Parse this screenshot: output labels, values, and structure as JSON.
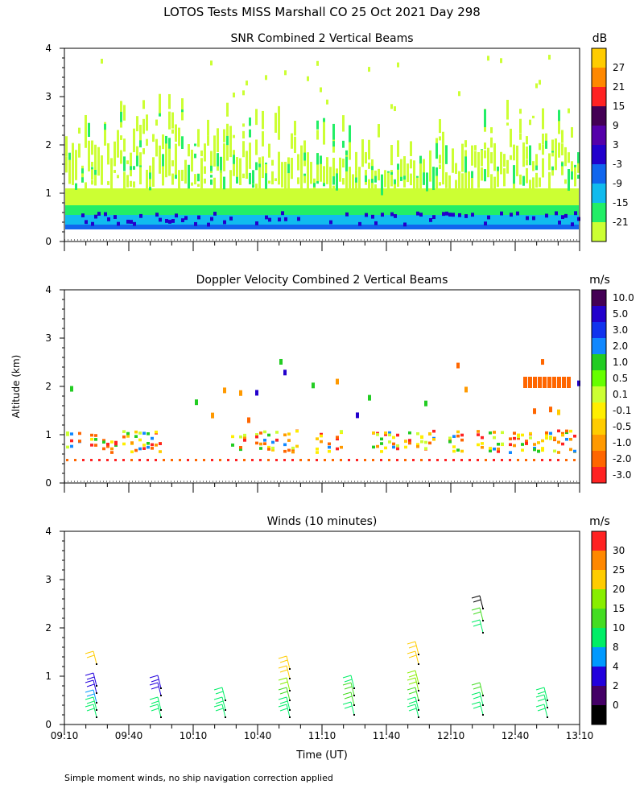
{
  "page_title": "LOTOS Tests MISS Marshall CO  25 Oct 2021 Day 298",
  "shared_ylabel": "Altitude (km)",
  "shared_xlabel": "Time (UT)",
  "footer_note": "Simple moment winds, no ship navigation correction applied",
  "colors": {
    "snr": [
      "#ccff33",
      "#22ee66",
      "#11bbee",
      "#1166ee",
      "#2200cc",
      "#5500aa",
      "#440055",
      "#ff2222",
      "#ff8800",
      "#ffcc00"
    ],
    "vel": [
      "#ff2222",
      "#ff6600",
      "#ff9900",
      "#ffcc00",
      "#ffee00",
      "#ccff33",
      "#66ff00",
      "#22cc22",
      "#1188ff",
      "#1133ee",
      "#2200cc",
      "#440055"
    ],
    "wind": [
      "#000000",
      "#440066",
      "#2200dd",
      "#0099ff",
      "#00ee66",
      "#44dd22",
      "#88ee00",
      "#ffcc00",
      "#ff8800",
      "#ff2222"
    ]
  },
  "chart_data": [
    {
      "type": "heatmap",
      "title": "SNR Combined 2 Vertical Beams",
      "units": "dB",
      "ylim": [
        0,
        4
      ],
      "yticks": [
        "0",
        "1",
        "2",
        "3",
        "4"
      ],
      "colorbar_labels": [
        "-21",
        "-15",
        "-9",
        "-3",
        "3",
        "9",
        "15",
        "21",
        "27"
      ],
      "x_ticks_shown": false,
      "profile_bands": [
        {
          "from_km": 0.25,
          "to_km": 0.35,
          "color_index": 3
        },
        {
          "from_km": 0.35,
          "to_km": 0.55,
          "color_index": 2
        },
        {
          "from_km": 0.55,
          "to_km": 0.75,
          "color_index": 1
        },
        {
          "from_km": 0.75,
          "to_km": 1.1,
          "color_index": 0
        }
      ]
    },
    {
      "type": "heatmap",
      "title": "Doppler Velocity Combined 2 Vertical Beams",
      "units": "m/s",
      "ylim": [
        0,
        4
      ],
      "yticks": [
        "0",
        "1",
        "2",
        "3",
        "4"
      ],
      "colorbar_labels": [
        "-3.0",
        "-2.0",
        "-1.0",
        "-0.5",
        "-0.1",
        "0.1",
        "0.5",
        "1.0",
        "2.0",
        "3.0",
        "5.0",
        "10.0"
      ],
      "x_ticks_shown": false
    },
    {
      "type": "scatter",
      "title": "Winds (10 minutes)",
      "units": "m/s",
      "ylim": [
        0,
        4
      ],
      "yticks": [
        "0",
        "1",
        "2",
        "3",
        "4"
      ],
      "x_ticks": [
        "09:10",
        "09:40",
        "10:10",
        "10:40",
        "11:10",
        "11:40",
        "12:10",
        "12:40",
        "13:10"
      ],
      "x_range_hours": [
        9.1667,
        13.1667
      ],
      "colorbar_labels": [
        "0",
        "2",
        "4",
        "8",
        "10",
        "15",
        "20",
        "25",
        "30"
      ],
      "profiles": [
        {
          "time": "09:25",
          "barbs": [
            {
              "alt_km": 0.15,
              "color_index": 4
            },
            {
              "alt_km": 0.3,
              "color_index": 4
            },
            {
              "alt_km": 0.45,
              "color_index": 3
            },
            {
              "alt_km": 0.65,
              "color_index": 2
            },
            {
              "alt_km": 0.8,
              "color_index": 2
            },
            {
              "alt_km": 1.25,
              "color_index": 7
            }
          ]
        },
        {
          "time": "09:55",
          "barbs": [
            {
              "alt_km": 0.15,
              "color_index": 4
            },
            {
              "alt_km": 0.3,
              "color_index": 4
            },
            {
              "alt_km": 0.6,
              "color_index": 2
            },
            {
              "alt_km": 0.75,
              "color_index": 2
            }
          ]
        },
        {
          "time": "10:25",
          "barbs": [
            {
              "alt_km": 0.15,
              "color_index": 4
            },
            {
              "alt_km": 0.3,
              "color_index": 4
            },
            {
              "alt_km": 0.5,
              "color_index": 4
            }
          ]
        },
        {
          "time": "10:55",
          "barbs": [
            {
              "alt_km": 0.15,
              "color_index": 4
            },
            {
              "alt_km": 0.3,
              "color_index": 4
            },
            {
              "alt_km": 0.5,
              "color_index": 5
            },
            {
              "alt_km": 0.7,
              "color_index": 6
            },
            {
              "alt_km": 0.95,
              "color_index": 7
            },
            {
              "alt_km": 1.15,
              "color_index": 7
            }
          ]
        },
        {
          "time": "11:25",
          "barbs": [
            {
              "alt_km": 0.2,
              "color_index": 4
            },
            {
              "alt_km": 0.4,
              "color_index": 5
            },
            {
              "alt_km": 0.6,
              "color_index": 5
            },
            {
              "alt_km": 0.75,
              "color_index": 4
            }
          ]
        },
        {
          "time": "11:55",
          "barbs": [
            {
              "alt_km": 0.15,
              "color_index": 4
            },
            {
              "alt_km": 0.3,
              "color_index": 4
            },
            {
              "alt_km": 0.5,
              "color_index": 5
            },
            {
              "alt_km": 0.7,
              "color_index": 6
            },
            {
              "alt_km": 0.85,
              "color_index": 6
            },
            {
              "alt_km": 1.25,
              "color_index": 7
            },
            {
              "alt_km": 1.45,
              "color_index": 7
            }
          ]
        },
        {
          "time": "12:25",
          "barbs": [
            {
              "alt_km": 0.2,
              "color_index": 4
            },
            {
              "alt_km": 0.4,
              "color_index": 4
            },
            {
              "alt_km": 0.6,
              "color_index": 5
            },
            {
              "alt_km": 1.9,
              "color_index": 4
            },
            {
              "alt_km": 2.15,
              "color_index": 5
            },
            {
              "alt_km": 2.4,
              "color_index": 0
            }
          ]
        },
        {
          "time": "12:55",
          "barbs": [
            {
              "alt_km": 0.15,
              "color_index": 4
            },
            {
              "alt_km": 0.35,
              "color_index": 4
            },
            {
              "alt_km": 0.5,
              "color_index": 4
            }
          ]
        }
      ]
    }
  ]
}
